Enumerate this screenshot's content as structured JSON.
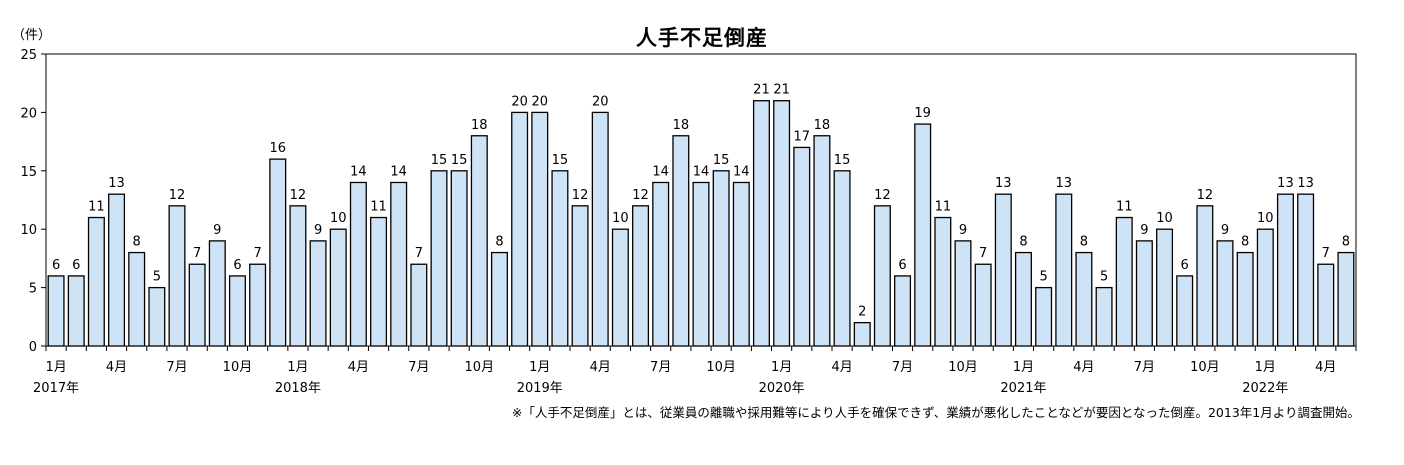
{
  "chart_data": {
    "type": "bar",
    "title": "人手不足倒産",
    "ylabel": "（件）",
    "ylim": [
      0,
      25
    ],
    "yticks": [
      0,
      5,
      10,
      15,
      20,
      25
    ],
    "grid": false,
    "bar_fill": "#cfe3f7",
    "bar_stroke": "#000000",
    "categories": [
      "2017-01",
      "2017-02",
      "2017-03",
      "2017-04",
      "2017-05",
      "2017-06",
      "2017-07",
      "2017-08",
      "2017-09",
      "2017-10",
      "2017-11",
      "2017-12",
      "2018-01",
      "2018-02",
      "2018-03",
      "2018-04",
      "2018-05",
      "2018-06",
      "2018-07",
      "2018-08",
      "2018-09",
      "2018-10",
      "2018-11",
      "2018-12",
      "2019-01",
      "2019-02",
      "2019-03",
      "2019-04",
      "2019-05",
      "2019-06",
      "2019-07",
      "2019-08",
      "2019-09",
      "2019-10",
      "2019-11",
      "2019-12",
      "2020-01",
      "2020-02",
      "2020-03",
      "2020-04",
      "2020-05",
      "2020-06",
      "2020-07",
      "2020-08",
      "2020-09",
      "2020-10",
      "2020-11",
      "2020-12",
      "2021-01",
      "2021-02",
      "2021-03",
      "2021-04",
      "2021-05",
      "2021-06",
      "2021-07",
      "2021-08",
      "2021-09",
      "2021-10",
      "2021-11",
      "2021-12",
      "2022-01",
      "2022-02",
      "2022-03",
      "2022-04",
      "2022-05"
    ],
    "values": [
      6,
      6,
      11,
      13,
      8,
      5,
      12,
      7,
      9,
      6,
      7,
      16,
      12,
      9,
      10,
      14,
      11,
      14,
      7,
      15,
      15,
      18,
      8,
      20,
      20,
      15,
      12,
      20,
      10,
      12,
      14,
      18,
      14,
      15,
      14,
      21,
      21,
      17,
      18,
      15,
      2,
      12,
      6,
      19,
      11,
      9,
      7,
      13,
      8,
      5,
      13,
      8,
      5,
      11,
      9,
      10,
      6,
      12,
      9,
      8,
      10,
      13,
      13,
      7,
      8
    ],
    "xtick_labels": [
      {
        "index": 0,
        "text": "1月"
      },
      {
        "index": 3,
        "text": "4月"
      },
      {
        "index": 6,
        "text": "7月"
      },
      {
        "index": 9,
        "text": "10月"
      },
      {
        "index": 12,
        "text": "1月"
      },
      {
        "index": 15,
        "text": "4月"
      },
      {
        "index": 18,
        "text": "7月"
      },
      {
        "index": 21,
        "text": "10月"
      },
      {
        "index": 24,
        "text": "1月"
      },
      {
        "index": 27,
        "text": "4月"
      },
      {
        "index": 30,
        "text": "7月"
      },
      {
        "index": 33,
        "text": "10月"
      },
      {
        "index": 36,
        "text": "1月"
      },
      {
        "index": 39,
        "text": "4月"
      },
      {
        "index": 42,
        "text": "7月"
      },
      {
        "index": 45,
        "text": "10月"
      },
      {
        "index": 48,
        "text": "1月"
      },
      {
        "index": 51,
        "text": "4月"
      },
      {
        "index": 54,
        "text": "7月"
      },
      {
        "index": 57,
        "text": "10月"
      },
      {
        "index": 60,
        "text": "1月"
      },
      {
        "index": 63,
        "text": "4月"
      }
    ],
    "year_labels": [
      {
        "index": 0,
        "text": "2017年"
      },
      {
        "index": 12,
        "text": "2018年"
      },
      {
        "index": 24,
        "text": "2019年"
      },
      {
        "index": 36,
        "text": "2020年"
      },
      {
        "index": 48,
        "text": "2021年"
      },
      {
        "index": 60,
        "text": "2022年"
      }
    ],
    "footnote": "※「人手不足倒産」とは、従業員の離職や採用難等により人手を確保できず、業績が悪化したことなどが要因となった倒産。2013年1月より調査開始。"
  }
}
